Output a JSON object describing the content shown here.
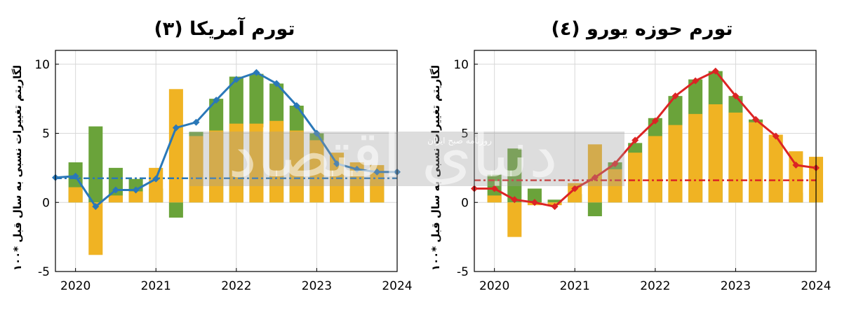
{
  "watermark": {
    "logo_text": "دنیای اقتصاد",
    "tagline": "روزنامه صبح ایران"
  },
  "colors": {
    "bar_green": "#6aa33a",
    "bar_orange": "#f0b323",
    "us_line": "#2a78b8",
    "euro_line": "#dc2424",
    "grid": "#d8d8d8",
    "axis": "#000000"
  },
  "chart_data": [
    {
      "type": "bar+line",
      "title": "(۳) تورم آمریکا",
      "ylabel": "لگاریتم تغییرات نسبی به سال قبل *۱۰۰",
      "xlabel": "",
      "xlim": [
        2019.75,
        2024.0
      ],
      "ylim": [
        -5,
        11
      ],
      "yticks": [
        "10",
        "5",
        "0",
        "-5"
      ],
      "ytick_values": [
        10,
        5,
        0,
        -5
      ],
      "xticks": [
        "2020",
        "2021",
        "2022",
        "2023",
        "2024"
      ],
      "xtick_values": [
        2020,
        2021,
        2022,
        2023,
        2024
      ],
      "grid": true,
      "dashed_reference": 1.75,
      "quarters": [
        2019.75,
        2020.0,
        2020.25,
        2020.5,
        2020.75,
        2021.0,
        2021.25,
        2021.5,
        2021.75,
        2022.0,
        2022.25,
        2022.5,
        2022.75,
        2023.0,
        2023.25,
        2023.5,
        2023.75,
        2024.0
      ],
      "bar_orange": [
        0,
        1.1,
        -3.8,
        0.5,
        0.8,
        2.5,
        8.2,
        4.8,
        5.2,
        5.7,
        5.7,
        5.9,
        5.2,
        4.5,
        3.6,
        2.9,
        2.7,
        0
      ],
      "bar_green": [
        0,
        2.9,
        5.5,
        2.5,
        1.7,
        1.0,
        -1.1,
        5.1,
        7.5,
        9.1,
        9.3,
        8.6,
        7.0,
        5.0,
        1.7,
        1.0,
        1.5,
        0
      ],
      "series": [
        {
          "values": [
            1.8,
            1.9,
            -0.3,
            0.9,
            0.9,
            1.7,
            5.4,
            5.8,
            7.4,
            8.9,
            9.4,
            8.6,
            7.0,
            5.0,
            2.8,
            2.4,
            2.2,
            2.2
          ]
        }
      ]
    },
    {
      "type": "bar+line",
      "title": "(٤) تورم حوزه یورو",
      "ylabel": "لگاریتم تغییرات نسبی به سال قبل *۱۰۰",
      "xlabel": "",
      "xlim": [
        2019.75,
        2024.0
      ],
      "ylim": [
        -5,
        11
      ],
      "yticks": [
        "10",
        "5",
        "0",
        "-5"
      ],
      "ytick_values": [
        10,
        5,
        0,
        -5
      ],
      "xticks": [
        "2020",
        "2021",
        "2022",
        "2023",
        "2024"
      ],
      "xtick_values": [
        2020,
        2021,
        2022,
        2023,
        2024
      ],
      "grid": true,
      "dashed_reference": 1.6,
      "quarters": [
        2019.75,
        2020.0,
        2020.25,
        2020.5,
        2020.75,
        2021.0,
        2021.25,
        2021.5,
        2021.75,
        2022.0,
        2022.25,
        2022.5,
        2022.75,
        2023.0,
        2023.25,
        2023.5,
        2023.75,
        2024.0
      ],
      "bar_orange": [
        0,
        0.5,
        -2.5,
        -0.2,
        -0.2,
        1.4,
        4.2,
        2.4,
        3.6,
        4.8,
        5.6,
        6.4,
        7.1,
        6.5,
        5.8,
        4.9,
        3.7,
        3.3
      ],
      "bar_green": [
        0,
        2.0,
        3.9,
        1.0,
        0.2,
        0.6,
        -1.0,
        2.9,
        4.3,
        6.1,
        7.7,
        8.9,
        9.5,
        7.7,
        6.0,
        1.6,
        0.7,
        1.0
      ],
      "series": [
        {
          "values": [
            1.0,
            1.0,
            0.2,
            0.0,
            -0.3,
            1.0,
            1.8,
            2.8,
            4.5,
            5.9,
            7.7,
            8.8,
            9.5,
            7.7,
            6.0,
            4.8,
            2.7,
            2.5
          ]
        }
      ]
    }
  ]
}
